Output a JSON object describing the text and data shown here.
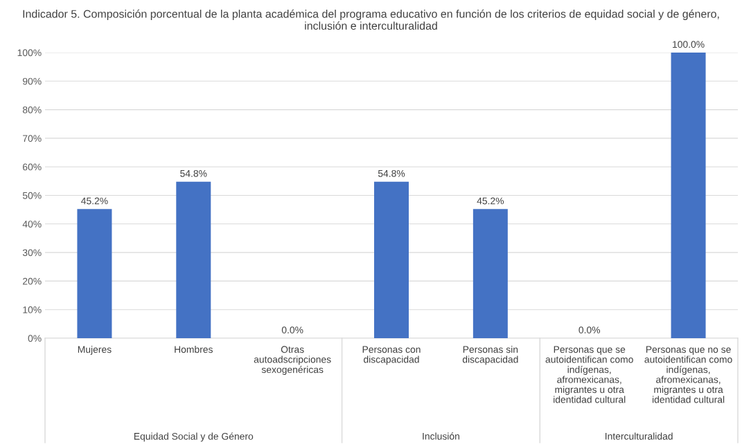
{
  "chart_data": {
    "type": "bar",
    "title": "Indicador 5. Composición porcentual de la planta académica del programa educativo en función de los criterios de equidad social y de género, inclusión e interculturalidad",
    "categories": [
      "Mujeres",
      "Hombres",
      "Otras autoadscripciones sexogenéricas",
      "Personas con discapacidad",
      "Personas sin discapacidad",
      "Personas que se autoidentifican como indígenas, afromexicanas, migrantes u otra identidad cultural",
      "Personas que no se autoidentifican como indígenas, afromexicanas, migrantes u otra identidad cultural"
    ],
    "values": [
      45.2,
      54.8,
      0.0,
      54.8,
      45.2,
      0.0,
      100.0
    ],
    "value_labels": [
      "45.2%",
      "54.8%",
      "0.0%",
      "54.8%",
      "45.2%",
      "0.0%",
      "100.0%"
    ],
    "color": "#4472c4",
    "ylim": [
      0,
      100
    ],
    "yticks": [
      {
        "value": 0,
        "label": "0%"
      },
      {
        "value": 10,
        "label": "10%"
      },
      {
        "value": 20,
        "label": "20%"
      },
      {
        "value": 30,
        "label": "30%"
      },
      {
        "value": 40,
        "label": "40%"
      },
      {
        "value": 50,
        "label": "50%"
      },
      {
        "value": 60,
        "label": "60%"
      },
      {
        "value": 70,
        "label": "70%"
      },
      {
        "value": 80,
        "label": "80%"
      },
      {
        "value": 90,
        "label": "90%"
      },
      {
        "value": 100,
        "label": "100%"
      }
    ],
    "grid": "y",
    "annotations": [
      "Equidad Social y de Género",
      "Inclusión",
      "Interculturalidad"
    ]
  }
}
